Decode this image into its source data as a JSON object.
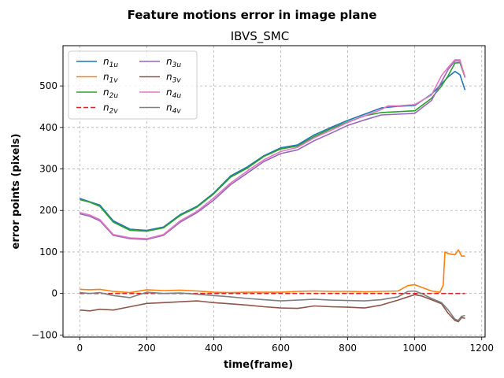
{
  "chart_data": {
    "type": "line",
    "suptitle": "Feature motions error in image plane",
    "title": "IBVS_SMC",
    "xlabel": "time(frame)",
    "ylabel": "error points (pixels)",
    "xlim": [
      -50,
      1210
    ],
    "ylim": [
      -105,
      597
    ],
    "xticks": [
      0,
      200,
      400,
      600,
      800,
      1000,
      1200
    ],
    "yticks": [
      -100,
      0,
      100,
      200,
      300,
      400,
      500
    ],
    "grid": true,
    "legend": {
      "placement": "top-left",
      "columns": 2
    },
    "series": [
      {
        "name": "n1u",
        "base": "n",
        "sub": "1u",
        "color": "#1f77b4",
        "dash": false,
        "x": [
          0,
          30,
          60,
          100,
          150,
          200,
          250,
          300,
          350,
          400,
          450,
          500,
          550,
          600,
          650,
          700,
          750,
          800,
          850,
          900,
          950,
          1000,
          1050,
          1080,
          1100,
          1120,
          1135,
          1150
        ],
        "y": [
          229,
          221,
          213,
          175,
          155,
          152,
          160,
          190,
          210,
          242,
          283,
          305,
          332,
          351,
          358,
          382,
          400,
          417,
          432,
          447,
          451,
          453,
          480,
          505,
          522,
          535,
          527,
          490
        ]
      },
      {
        "name": "n1v",
        "base": "n",
        "sub": "1v",
        "color": "#ff7f0e",
        "dash": false,
        "x": [
          0,
          30,
          60,
          100,
          150,
          200,
          250,
          300,
          350,
          400,
          450,
          500,
          550,
          600,
          650,
          700,
          750,
          800,
          850,
          900,
          950,
          980,
          1000,
          1020,
          1050,
          1075,
          1085,
          1090,
          1100,
          1120,
          1130,
          1140,
          1150
        ],
        "y": [
          10,
          9,
          10,
          5,
          2,
          9,
          7,
          8,
          6,
          3,
          2,
          3,
          3,
          3,
          5,
          6,
          5,
          5,
          4,
          5,
          6,
          19,
          21,
          15,
          6,
          3,
          20,
          100,
          96,
          93,
          105,
          90,
          90
        ]
      },
      {
        "name": "n2u",
        "base": "n",
        "sub": "2u",
        "color": "#2ca02c",
        "dash": false,
        "x": [
          0,
          30,
          60,
          100,
          150,
          200,
          250,
          300,
          350,
          400,
          450,
          500,
          550,
          600,
          650,
          700,
          750,
          800,
          850,
          900,
          950,
          1000,
          1050,
          1080,
          1100,
          1120,
          1135,
          1150
        ],
        "y": [
          226,
          220,
          210,
          172,
          152,
          150,
          158,
          188,
          208,
          240,
          280,
          302,
          330,
          348,
          355,
          378,
          397,
          413,
          428,
          436,
          438,
          440,
          470,
          500,
          525,
          555,
          556,
          520
        ]
      },
      {
        "name": "n2v",
        "base": "n",
        "sub": "2v",
        "color": "#d62728",
        "dash": true,
        "x": [
          0,
          50,
          100,
          150,
          200,
          300,
          400,
          500,
          600,
          700,
          800,
          900,
          1000,
          1100,
          1150
        ],
        "y": [
          0,
          0,
          0,
          0,
          0,
          0,
          0,
          0,
          0,
          0,
          0,
          0,
          0,
          0,
          0
        ]
      },
      {
        "name": "n3u",
        "base": "n",
        "sub": "3u",
        "color": "#9467bd",
        "dash": false,
        "x": [
          0,
          30,
          60,
          100,
          150,
          200,
          250,
          300,
          350,
          400,
          450,
          500,
          550,
          600,
          650,
          700,
          750,
          800,
          850,
          900,
          950,
          1000,
          1050,
          1080,
          1100,
          1120,
          1135,
          1150
        ],
        "y": [
          192,
          186,
          175,
          140,
          132,
          130,
          140,
          172,
          195,
          225,
          262,
          290,
          318,
          337,
          346,
          368,
          386,
          405,
          418,
          430,
          432,
          434,
          465,
          510,
          540,
          560,
          560,
          522
        ]
      },
      {
        "name": "n3v",
        "base": "n",
        "sub": "3v",
        "color": "#8c564b",
        "dash": false,
        "x": [
          0,
          30,
          60,
          100,
          150,
          200,
          250,
          300,
          350,
          400,
          450,
          500,
          550,
          600,
          650,
          700,
          750,
          800,
          850,
          900,
          950,
          980,
          1000,
          1020,
          1050,
          1080,
          1100,
          1120,
          1130,
          1140,
          1150
        ],
        "y": [
          -40,
          -42,
          -38,
          -40,
          -32,
          -24,
          -22,
          -20,
          -18,
          -22,
          -25,
          -28,
          -32,
          -35,
          -36,
          -30,
          -32,
          -33,
          -35,
          -28,
          -16,
          -8,
          -3,
          -6,
          -15,
          -25,
          -48,
          -65,
          -68,
          -58,
          -60
        ]
      },
      {
        "name": "n4u",
        "base": "n",
        "sub": "4u",
        "color": "#e377c2",
        "dash": false,
        "x": [
          0,
          30,
          60,
          100,
          150,
          200,
          250,
          300,
          350,
          400,
          450,
          500,
          550,
          600,
          650,
          700,
          750,
          800,
          850,
          900,
          920,
          950,
          1000,
          1050,
          1080,
          1100,
          1120,
          1135,
          1150
        ],
        "y": [
          195,
          189,
          178,
          142,
          134,
          132,
          142,
          175,
          198,
          230,
          266,
          295,
          322,
          342,
          352,
          375,
          393,
          412,
          428,
          443,
          452,
          452,
          455,
          478,
          525,
          545,
          563,
          563,
          520
        ]
      },
      {
        "name": "n4v",
        "base": "n",
        "sub": "4v",
        "color": "#7f7f7f",
        "dash": false,
        "x": [
          0,
          30,
          60,
          100,
          150,
          200,
          250,
          300,
          350,
          400,
          450,
          500,
          550,
          600,
          650,
          700,
          750,
          800,
          850,
          900,
          950,
          980,
          1000,
          1020,
          1050,
          1080,
          1100,
          1120,
          1130,
          1140,
          1150
        ],
        "y": [
          2,
          0,
          2,
          -5,
          -10,
          3,
          0,
          1,
          -2,
          -5,
          -8,
          -12,
          -15,
          -18,
          -16,
          -14,
          -16,
          -17,
          -18,
          -15,
          -8,
          5,
          6,
          0,
          -12,
          -22,
          -40,
          -62,
          -65,
          -55,
          -53
        ]
      }
    ]
  }
}
